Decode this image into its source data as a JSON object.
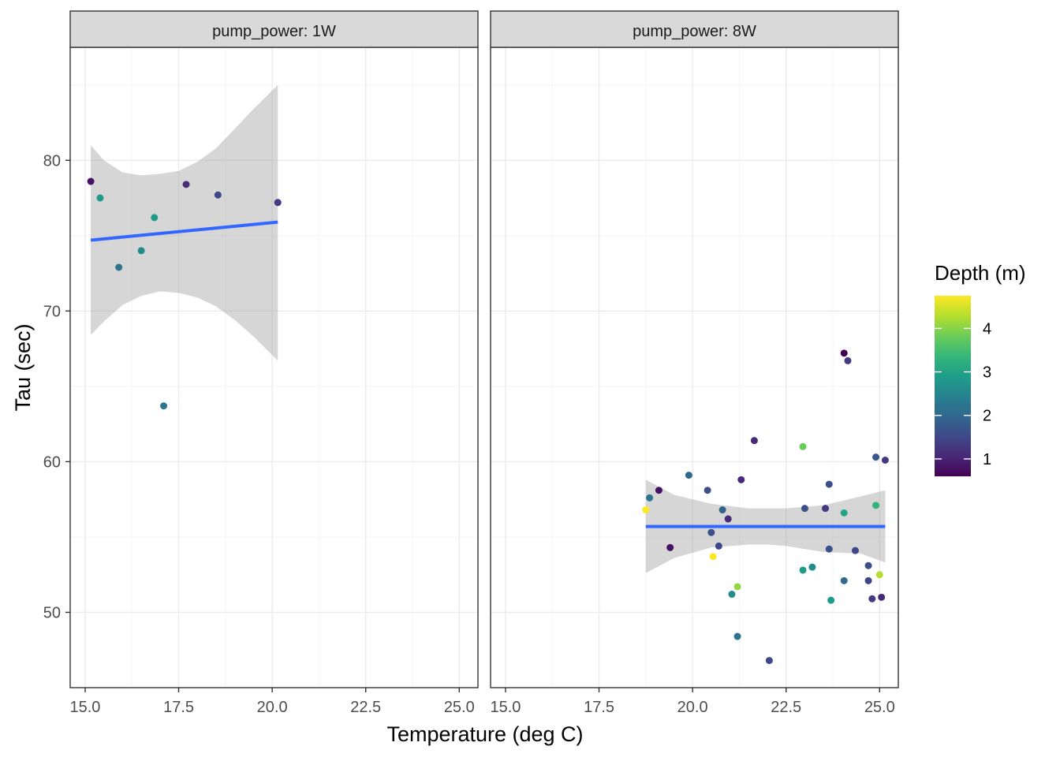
{
  "chart_data": {
    "type": "scatter",
    "xlabel": "Temperature (deg C)",
    "ylabel": "Tau (sec)",
    "xlim": [
      14.6,
      25.5
    ],
    "ylim": [
      45,
      87.5
    ],
    "x_ticks": [
      15.0,
      17.5,
      20.0,
      22.5,
      25.0
    ],
    "x_tick_labels": [
      "15.0",
      "17.5",
      "20.0",
      "22.5",
      "25.0"
    ],
    "y_ticks": [
      50,
      60,
      70,
      80
    ],
    "y_tick_labels": [
      "50",
      "60",
      "70",
      "80"
    ],
    "grid": true,
    "legend": {
      "title": "Depth (m)",
      "placement": "right",
      "type": "colorbar",
      "range": [
        0.6,
        4.75
      ],
      "ticks": [
        1,
        2,
        3,
        4
      ],
      "tick_labels": [
        "1",
        "2",
        "3",
        "4"
      ]
    },
    "colors": {
      "fit_line": "#3366FF",
      "ribbon": "#999999",
      "strip_fill": "#D9D9D9",
      "panel_border": "#333333",
      "grid_major": "#EBEBEB",
      "grid_minor": "#F5F5F5",
      "palette": [
        "#440154",
        "#482878",
        "#3E4A89",
        "#31688E",
        "#26828E",
        "#1F9E89",
        "#35B779",
        "#6DCD59",
        "#B4DE2C",
        "#FDE725"
      ]
    },
    "facets": [
      {
        "strip_label": "pump_power: 1W",
        "points": [
          {
            "x": 15.15,
            "y": 78.6,
            "depth": 0.8
          },
          {
            "x": 15.4,
            "y": 77.5,
            "depth": 2.85
          },
          {
            "x": 15.9,
            "y": 72.9,
            "depth": 2.2
          },
          {
            "x": 16.5,
            "y": 74.0,
            "depth": 2.6
          },
          {
            "x": 16.85,
            "y": 76.2,
            "depth": 2.85
          },
          {
            "x": 17.1,
            "y": 63.7,
            "depth": 2.2
          },
          {
            "x": 17.7,
            "y": 78.4,
            "depth": 1.1
          },
          {
            "x": 18.55,
            "y": 77.7,
            "depth": 1.5
          },
          {
            "x": 20.15,
            "y": 77.2,
            "depth": 1.3
          }
        ],
        "fit": {
          "x": [
            15.15,
            20.15
          ],
          "y": [
            74.7,
            75.9
          ]
        },
        "ribbon": {
          "x": [
            15.15,
            15.5,
            16.0,
            16.5,
            17.0,
            17.5,
            18.0,
            18.5,
            19.0,
            19.5,
            20.15
          ],
          "lower": [
            68.4,
            69.3,
            70.4,
            71.0,
            71.3,
            71.2,
            70.9,
            70.3,
            69.4,
            68.3,
            66.7
          ],
          "upper": [
            81.0,
            80.0,
            79.2,
            79.0,
            79.1,
            79.3,
            79.9,
            80.8,
            82.1,
            83.4,
            85.0
          ]
        }
      },
      {
        "strip_label": "pump_power: 8W",
        "points": [
          {
            "x": 18.75,
            "y": 56.8,
            "depth": 4.75
          },
          {
            "x": 18.85,
            "y": 57.6,
            "depth": 2.2
          },
          {
            "x": 19.1,
            "y": 58.1,
            "depth": 0.8
          },
          {
            "x": 19.4,
            "y": 54.3,
            "depth": 0.8
          },
          {
            "x": 19.9,
            "y": 59.1,
            "depth": 2.0
          },
          {
            "x": 20.4,
            "y": 58.1,
            "depth": 1.6
          },
          {
            "x": 20.5,
            "y": 55.3,
            "depth": 1.6
          },
          {
            "x": 20.55,
            "y": 53.7,
            "depth": 4.75
          },
          {
            "x": 20.7,
            "y": 54.4,
            "depth": 1.5
          },
          {
            "x": 20.8,
            "y": 56.8,
            "depth": 1.9
          },
          {
            "x": 20.95,
            "y": 56.2,
            "depth": 1.1
          },
          {
            "x": 21.05,
            "y": 51.2,
            "depth": 2.6
          },
          {
            "x": 21.2,
            "y": 51.7,
            "depth": 4.1
          },
          {
            "x": 21.2,
            "y": 48.4,
            "depth": 2.2
          },
          {
            "x": 21.3,
            "y": 58.8,
            "depth": 1.1
          },
          {
            "x": 21.65,
            "y": 61.4,
            "depth": 1.1
          },
          {
            "x": 22.05,
            "y": 46.8,
            "depth": 1.5
          },
          {
            "x": 22.95,
            "y": 61.0,
            "depth": 3.8
          },
          {
            "x": 22.95,
            "y": 52.8,
            "depth": 2.85
          },
          {
            "x": 23.0,
            "y": 56.9,
            "depth": 1.6
          },
          {
            "x": 23.2,
            "y": 53.0,
            "depth": 2.6
          },
          {
            "x": 23.55,
            "y": 56.9,
            "depth": 1.3
          },
          {
            "x": 23.65,
            "y": 58.5,
            "depth": 1.6
          },
          {
            "x": 23.65,
            "y": 54.2,
            "depth": 1.6
          },
          {
            "x": 23.7,
            "y": 50.8,
            "depth": 2.85
          },
          {
            "x": 24.05,
            "y": 67.2,
            "depth": 0.6
          },
          {
            "x": 24.05,
            "y": 56.6,
            "depth": 3.0
          },
          {
            "x": 24.05,
            "y": 52.1,
            "depth": 2.0
          },
          {
            "x": 24.15,
            "y": 66.7,
            "depth": 1.3
          },
          {
            "x": 24.35,
            "y": 54.1,
            "depth": 1.5
          },
          {
            "x": 24.7,
            "y": 53.1,
            "depth": 1.6
          },
          {
            "x": 24.7,
            "y": 52.1,
            "depth": 1.5
          },
          {
            "x": 24.8,
            "y": 50.9,
            "depth": 1.3
          },
          {
            "x": 24.9,
            "y": 57.1,
            "depth": 3.3
          },
          {
            "x": 24.9,
            "y": 60.3,
            "depth": 1.7
          },
          {
            "x": 25.0,
            "y": 52.5,
            "depth": 4.3
          },
          {
            "x": 25.05,
            "y": 51.0,
            "depth": 1.1
          },
          {
            "x": 25.15,
            "y": 60.1,
            "depth": 1.3
          }
        ],
        "fit": {
          "x": [
            18.75,
            25.15
          ],
          "y": [
            55.7,
            55.7
          ]
        },
        "ribbon": {
          "x": [
            18.75,
            19.5,
            20.5,
            21.5,
            22.0,
            22.5,
            23.5,
            24.5,
            25.15
          ],
          "lower": [
            52.6,
            53.6,
            54.3,
            54.5,
            54.5,
            54.4,
            54.0,
            53.9,
            53.3
          ],
          "upper": [
            58.8,
            57.8,
            57.2,
            56.9,
            56.9,
            56.9,
            57.1,
            57.7,
            58.1
          ]
        }
      }
    ]
  }
}
